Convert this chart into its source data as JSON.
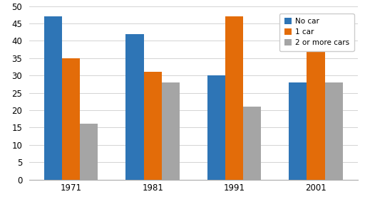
{
  "years": [
    "1971",
    "1981",
    "1991",
    "2001"
  ],
  "no_car": [
    47,
    42,
    30,
    28
  ],
  "one_car": [
    35,
    31,
    47,
    43
  ],
  "two_more_cars": [
    16,
    28,
    21,
    28
  ],
  "bar_colors": {
    "no_car": "#2E75B6",
    "one_car": "#E36C09",
    "two_more_cars": "#A5A5A5"
  },
  "legend_labels": [
    "No car",
    "1 car",
    "2 or more cars"
  ],
  "ylim": [
    0,
    50
  ],
  "yticks": [
    0,
    5,
    10,
    15,
    20,
    25,
    30,
    35,
    40,
    45,
    50
  ],
  "bar_width": 0.22,
  "background_color": "#FFFFFF",
  "figsize": [
    5.12,
    2.87
  ],
  "dpi": 100
}
